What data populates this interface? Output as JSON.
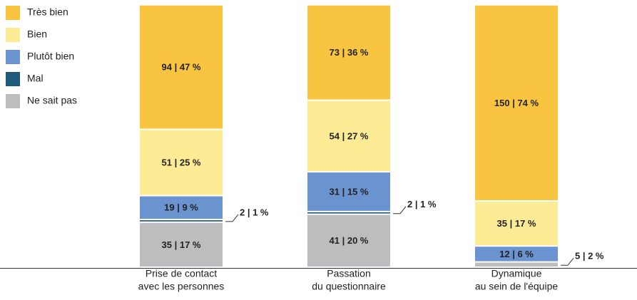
{
  "chart_data": {
    "type": "stacked-bar",
    "categories": [
      [
        "Prise de contact",
        "avec les personnes"
      ],
      [
        "Passation",
        "du questionnaire"
      ],
      [
        "Dynamique",
        "au sein de l'équipe"
      ]
    ],
    "series": [
      {
        "name": "Ne sait pas",
        "color": "#bdbdc0",
        "values": [
          17,
          20,
          2
        ],
        "value_labels": [
          "35 | 17 %",
          "41 | 20 %",
          "5 | 2 %"
        ]
      },
      {
        "name": "Mal",
        "color": "#1f5a7a",
        "values": [
          1,
          1,
          null
        ],
        "value_labels": [
          "2 | 1 %",
          "2 | 1 %",
          null
        ]
      },
      {
        "name": "Plutôt bien",
        "color": "#6a93cf",
        "values": [
          9,
          15,
          6
        ],
        "value_labels": [
          "19 | 9 %",
          "31 | 15 %",
          "12 | 6 %"
        ]
      },
      {
        "name": "Bien",
        "color": "#feeb95",
        "values": [
          25,
          27,
          17
        ],
        "value_labels": [
          "51 | 25 %",
          "54 | 27 %",
          "35 | 17 %"
        ]
      },
      {
        "name": "Très bien",
        "color": "#f9c440",
        "values": [
          47,
          36,
          74
        ],
        "value_labels": [
          "94 | 47 %",
          "73 | 36 %",
          "150 | 74 %"
        ]
      }
    ]
  }
}
